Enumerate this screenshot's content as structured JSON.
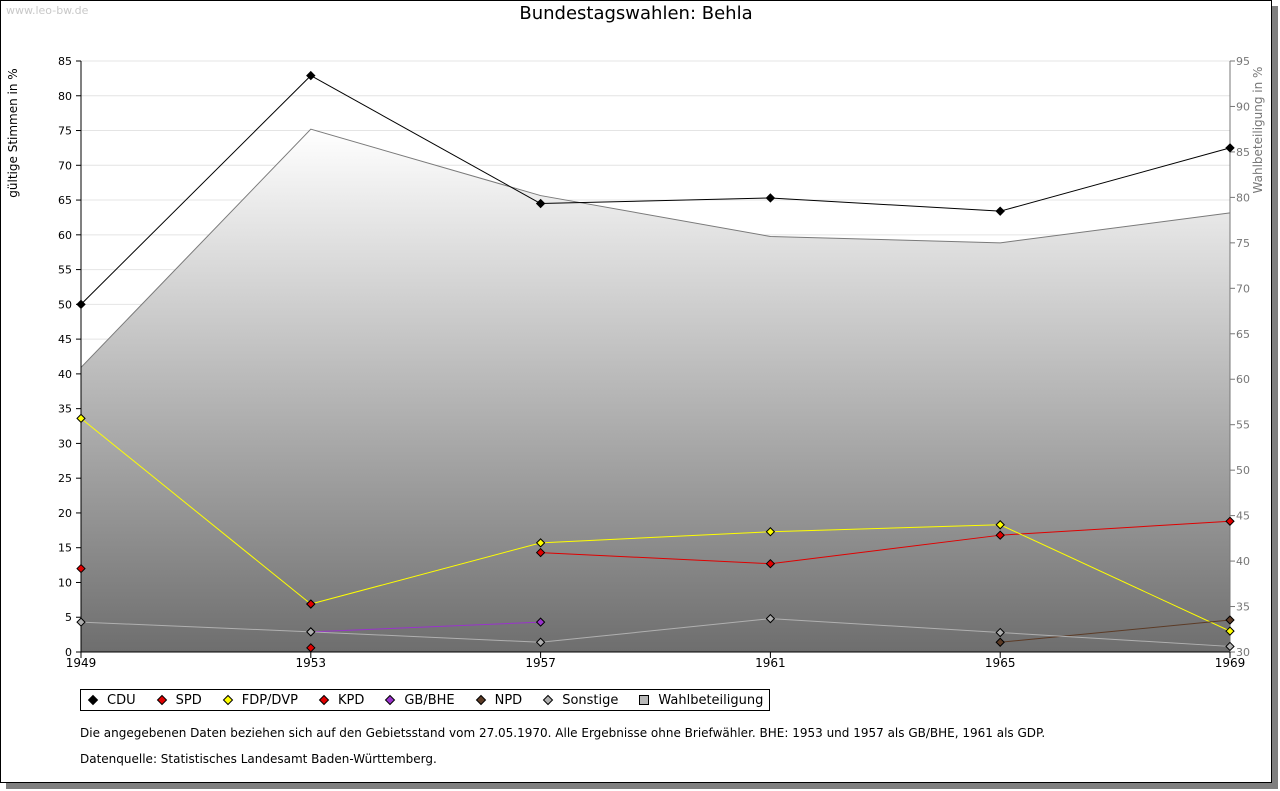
{
  "watermark": "www.leo-bw.de",
  "title": "Bundestagswahlen: Behla",
  "chart_data": {
    "type": "line",
    "title": "Bundestagswahlen: Behla",
    "x": [
      "1949",
      "1953",
      "1957",
      "1961",
      "1965",
      "1969"
    ],
    "ylabel": "gültige Stimmen in %",
    "ylim": [
      0,
      85
    ],
    "yticks": [
      0,
      5,
      10,
      15,
      20,
      25,
      30,
      35,
      40,
      45,
      50,
      55,
      60,
      65,
      70,
      75,
      80,
      85
    ],
    "y2label": "Wahlbeteiligung in %",
    "y2lim": [
      30,
      95
    ],
    "y2ticks": [
      30,
      35,
      40,
      45,
      50,
      55,
      60,
      65,
      70,
      75,
      80,
      85,
      90,
      95
    ],
    "grid": true,
    "legend_position": "bottom",
    "series": [
      {
        "name": "CDU",
        "color": "#000000",
        "values": [
          50.0,
          82.9,
          64.5,
          65.3,
          63.4,
          72.5
        ]
      },
      {
        "name": "SPD",
        "color": "#e00000",
        "values": [
          12.0,
          0.6,
          14.3,
          12.7,
          16.8,
          18.8
        ],
        "line_pattern": [
          true,
          false,
          true,
          true,
          true,
          true
        ]
      },
      {
        "name": "FDP/DVP",
        "color": "#ffff00",
        "values": [
          33.6,
          6.9,
          15.7,
          17.3,
          18.3,
          3.0
        ]
      },
      {
        "name": "KPD",
        "color": "#e00000",
        "values": [
          null,
          6.9,
          null,
          null,
          null,
          null
        ]
      },
      {
        "name": "GB/BHE",
        "color": "#9933cc",
        "values": [
          null,
          2.9,
          4.3,
          null,
          null,
          null
        ]
      },
      {
        "name": "NPD",
        "color": "#5c3b26",
        "values": [
          null,
          null,
          null,
          null,
          1.4,
          4.6
        ]
      },
      {
        "name": "Sonstige",
        "color": "#b0b0b0",
        "values": [
          4.3,
          2.9,
          1.4,
          4.8,
          2.8,
          0.8
        ]
      }
    ],
    "turnout": {
      "name": "Wahlbeteiligung",
      "axis": "right",
      "values": [
        61.3,
        87.5,
        80.2,
        75.7,
        75.0,
        78.3
      ]
    }
  },
  "notes": [
    "Die angegebenen Daten beziehen sich auf den Gebietsstand vom 27.05.1970. Alle Ergebnisse ohne Briefwähler. BHE: 1953 und 1957 als GB/BHE, 1961 als GDP.",
    "Datenquelle: Statistisches Landesamt Baden-Württemberg."
  ],
  "legend": [
    {
      "label": "CDU",
      "color": "#000000",
      "shape": "diamond"
    },
    {
      "label": "SPD",
      "color": "#e00000",
      "shape": "diamond"
    },
    {
      "label": "FDP/DVP",
      "color": "#ffff00",
      "shape": "diamond"
    },
    {
      "label": "KPD",
      "color": "#e00000",
      "shape": "diamond"
    },
    {
      "label": "GB/BHE",
      "color": "#9933cc",
      "shape": "diamond"
    },
    {
      "label": "NPD",
      "color": "#5c3b26",
      "shape": "diamond"
    },
    {
      "label": "Sonstige",
      "color": "#b0b0b0",
      "shape": "diamond"
    },
    {
      "label": "Wahlbeteiligung",
      "color": "#b8b8b8",
      "shape": "square"
    }
  ]
}
